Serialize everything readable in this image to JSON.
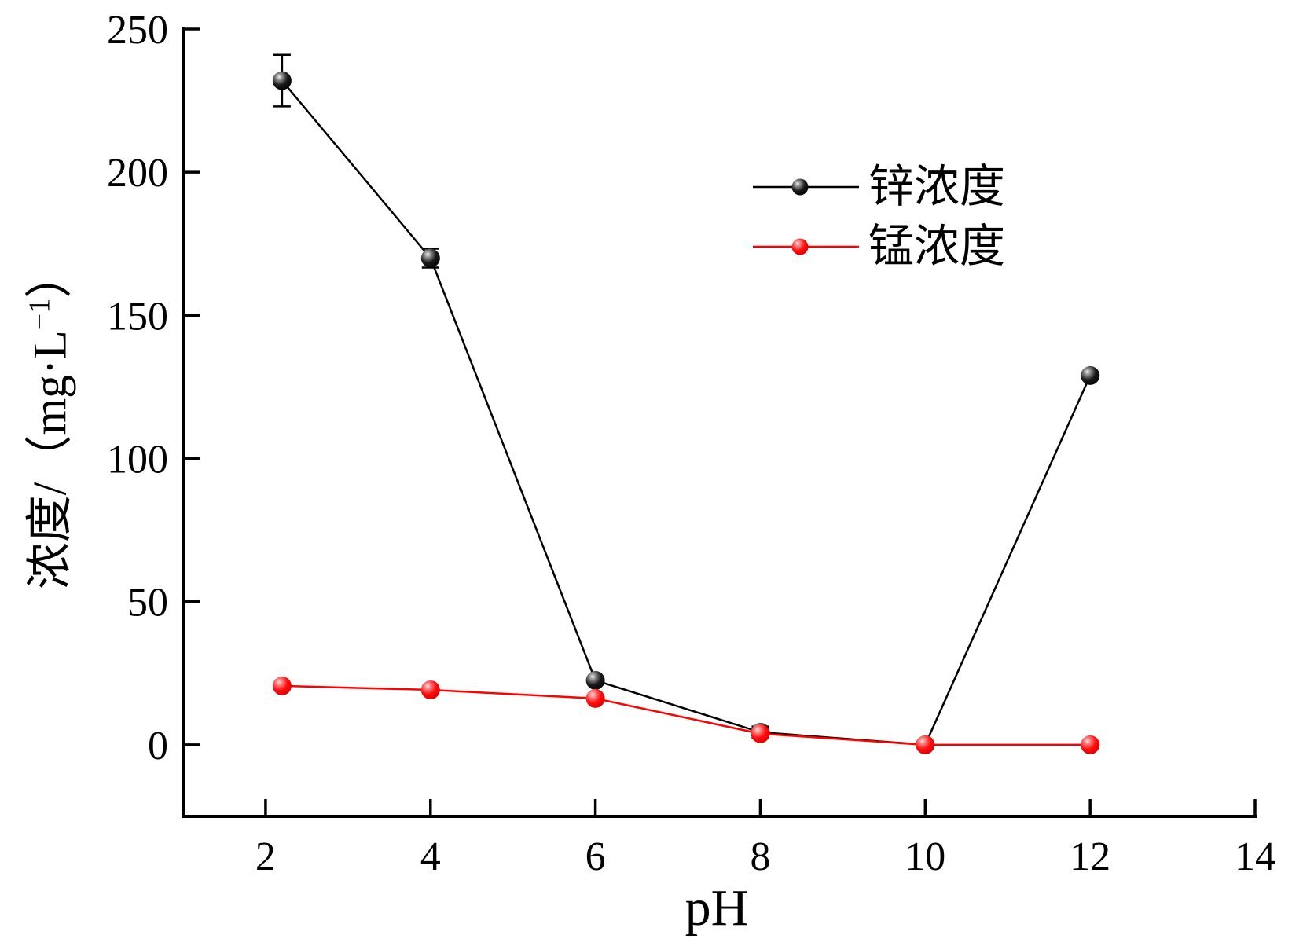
{
  "figure": {
    "background": "#ffffff",
    "xlabel": "pH",
    "ylabel_prefix": "浓度/（mg·L",
    "ylabel_sup": "−1",
    "ylabel_suffix": "）",
    "legend": [
      {
        "key": "zinc",
        "label": "锌浓度",
        "color": "#000000"
      },
      {
        "key": "manganese",
        "label": "锰浓度",
        "color": "#ff0000"
      }
    ]
  },
  "chart_data": {
    "type": "line",
    "title": "",
    "xlabel": "pH",
    "ylabel": "浓度/（mg·L−1）",
    "xlim": [
      1,
      14
    ],
    "ylim": [
      -25,
      250
    ],
    "xticks": [
      2,
      4,
      6,
      8,
      10,
      12,
      14
    ],
    "yticks": [
      0,
      50,
      100,
      150,
      200,
      250
    ],
    "grid": false,
    "legend_position": "upper-right-inside",
    "marker": "sphere",
    "x": [
      2.2,
      4,
      6,
      8,
      10,
      12
    ],
    "series": [
      {
        "key": "zinc",
        "name": "锌浓度",
        "color": "#000000",
        "values": [
          232,
          170,
          22.5,
          4.4,
          0,
          129
        ],
        "yerr": [
          9,
          3.3,
          0,
          2,
          0,
          0
        ]
      },
      {
        "key": "manganese",
        "name": "锰浓度",
        "color": "#ff0000",
        "values": [
          20.6,
          19.2,
          16.2,
          3.9,
          0,
          0
        ],
        "yerr": [
          0,
          0,
          0,
          0,
          0,
          0
        ]
      }
    ]
  }
}
